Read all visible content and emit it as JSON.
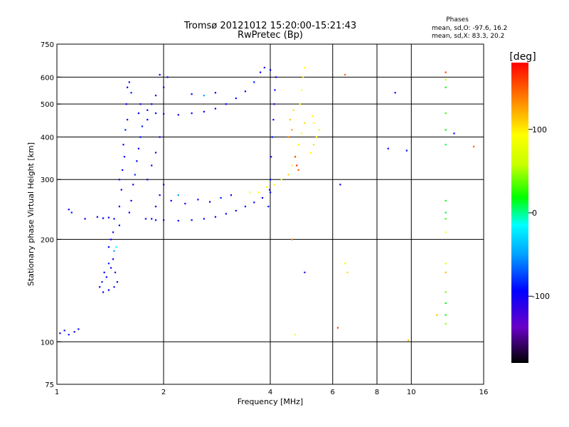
{
  "chart_data": {
    "type": "scatter",
    "title": "Tromsø 20121012 15:20:00-15:21:43",
    "subtitle": "RwPretec (Bp)",
    "xlabel": "Frequency [MHz]",
    "ylabel": "Stationary phase Virtual Height [km]",
    "x_scale": "log",
    "y_scale": "log",
    "xlim": [
      1,
      16
    ],
    "ylim": [
      75,
      750
    ],
    "x_ticks": [
      1,
      2,
      4,
      6,
      8,
      10,
      16
    ],
    "x_tick_labels": [
      "1",
      "2",
      "4",
      "6",
      "8",
      "10",
      "16"
    ],
    "y_ticks": [
      75,
      100,
      200,
      300,
      400,
      500,
      600,
      750
    ],
    "y_tick_labels": [
      "75",
      "100",
      "200",
      "300",
      "400",
      "500",
      "600",
      "750"
    ],
    "x_grid": [
      2,
      4,
      6,
      8,
      10
    ],
    "y_grid": [
      100,
      200,
      300,
      400,
      500,
      600
    ],
    "legend": {
      "title": "Phases",
      "lines": [
        "mean, sd,O: -97.6, 16.2",
        "mean, sd,X: 83.3, 20.2"
      ],
      "placement": "top-right"
    },
    "colorbar": {
      "label": "[deg]",
      "range": [
        -180,
        180
      ],
      "ticks": [
        100,
        0,
        -100
      ],
      "tick_labels": [
        "100",
        "0",
        "-100"
      ],
      "colors": [
        "#000000",
        "#6a00c8",
        "#0000ff",
        "#00a0ff",
        "#00ffff",
        "#00ff00",
        "#c8ff00",
        "#ffff00",
        "#ff8000",
        "#ff0000"
      ]
    },
    "series": [
      {
        "points": [
          [
            1.02,
            106,
            -100
          ],
          [
            1.05,
            108,
            -100
          ],
          [
            1.08,
            105,
            -95
          ],
          [
            1.12,
            107,
            -100
          ],
          [
            1.15,
            109,
            -100
          ],
          [
            1.08,
            245,
            -100
          ],
          [
            1.1,
            240,
            -95
          ],
          [
            1.2,
            230,
            -100
          ],
          [
            1.3,
            233,
            -100
          ],
          [
            1.35,
            231,
            -100
          ],
          [
            1.4,
            232,
            -105
          ],
          [
            1.45,
            230,
            -100
          ],
          [
            1.32,
            145,
            -100
          ],
          [
            1.34,
            150,
            -95
          ],
          [
            1.36,
            160,
            -100
          ],
          [
            1.38,
            155,
            -100
          ],
          [
            1.4,
            170,
            -95
          ],
          [
            1.42,
            165,
            -100
          ],
          [
            1.44,
            175,
            -100
          ],
          [
            1.46,
            160,
            -95
          ],
          [
            1.48,
            150,
            -100
          ],
          [
            1.35,
            140,
            -100
          ],
          [
            1.4,
            142,
            -100
          ],
          [
            1.45,
            145,
            -105
          ],
          [
            1.4,
            190,
            -100
          ],
          [
            1.42,
            200,
            -100
          ],
          [
            1.44,
            210,
            -100
          ],
          [
            1.45,
            185,
            -60
          ],
          [
            1.47,
            190,
            -20
          ],
          [
            1.5,
            220,
            -100
          ],
          [
            1.5,
            250,
            -100
          ],
          [
            1.52,
            280,
            -100
          ],
          [
            1.5,
            300,
            -95
          ],
          [
            1.53,
            320,
            -100
          ],
          [
            1.55,
            350,
            -100
          ],
          [
            1.54,
            380,
            -100
          ],
          [
            1.56,
            420,
            -95
          ],
          [
            1.58,
            450,
            -100
          ],
          [
            1.57,
            500,
            -100
          ],
          [
            1.58,
            560,
            -100
          ],
          [
            1.6,
            580,
            -100
          ],
          [
            1.62,
            540,
            -95
          ],
          [
            1.6,
            240,
            -100
          ],
          [
            1.62,
            260,
            -100
          ],
          [
            1.64,
            290,
            -100
          ],
          [
            1.66,
            310,
            -90
          ],
          [
            1.68,
            340,
            -100
          ],
          [
            1.7,
            370,
            -100
          ],
          [
            1.72,
            400,
            -100
          ],
          [
            1.74,
            430,
            -95
          ],
          [
            1.7,
            470,
            -100
          ],
          [
            1.72,
            500,
            -100
          ],
          [
            1.78,
            230,
            -100
          ],
          [
            1.85,
            230,
            -100
          ],
          [
            1.9,
            228,
            -100
          ],
          [
            2.0,
            228,
            -100
          ],
          [
            2.2,
            227,
            -100
          ],
          [
            2.4,
            228,
            -100
          ],
          [
            2.6,
            230,
            -100
          ],
          [
            2.8,
            233,
            -100
          ],
          [
            3.0,
            238,
            -100
          ],
          [
            3.2,
            243,
            -95
          ],
          [
            3.4,
            250,
            -100
          ],
          [
            3.6,
            257,
            -100
          ],
          [
            3.8,
            265,
            -100
          ],
          [
            4.0,
            275,
            -100
          ],
          [
            1.9,
            250,
            -100
          ],
          [
            1.95,
            270,
            -100
          ],
          [
            2.0,
            290,
            -100
          ],
          [
            2.1,
            260,
            -100
          ],
          [
            2.2,
            270,
            -60
          ],
          [
            2.3,
            255,
            -100
          ],
          [
            2.5,
            262,
            -100
          ],
          [
            2.7,
            258,
            -100
          ],
          [
            2.9,
            265,
            -95
          ],
          [
            3.1,
            270,
            -100
          ],
          [
            1.8,
            300,
            -100
          ],
          [
            1.85,
            330,
            -100
          ],
          [
            1.9,
            360,
            -100
          ],
          [
            1.95,
            400,
            -100
          ],
          [
            1.8,
            450,
            -100
          ],
          [
            1.85,
            500,
            -100
          ],
          [
            1.9,
            530,
            -100
          ],
          [
            2.0,
            560,
            -100
          ],
          [
            2.05,
            600,
            -100
          ],
          [
            1.95,
            610,
            -100
          ],
          [
            1.8,
            480,
            -100
          ],
          [
            1.9,
            470,
            -100
          ],
          [
            2.0,
            468,
            -100
          ],
          [
            2.2,
            465,
            -100
          ],
          [
            2.4,
            470,
            -100
          ],
          [
            2.6,
            475,
            -100
          ],
          [
            2.8,
            485,
            -100
          ],
          [
            3.0,
            500,
            -100
          ],
          [
            3.2,
            520,
            -100
          ],
          [
            3.4,
            545,
            -100
          ],
          [
            3.6,
            580,
            -95
          ],
          [
            3.75,
            620,
            -100
          ],
          [
            3.85,
            640,
            -100
          ],
          [
            2.4,
            535,
            -100
          ],
          [
            2.6,
            530,
            -60
          ],
          [
            2.8,
            540,
            -100
          ],
          [
            4.0,
            300,
            -100
          ],
          [
            4.02,
            350,
            -100
          ],
          [
            4.05,
            400,
            -95
          ],
          [
            4.08,
            450,
            -100
          ],
          [
            4.1,
            500,
            -100
          ],
          [
            4.12,
            550,
            -100
          ],
          [
            4.15,
            600,
            -100
          ],
          [
            4.0,
            630,
            -100
          ],
          [
            3.95,
            250,
            -100
          ],
          [
            3.98,
            280,
            -100
          ],
          [
            3.5,
            275,
            100
          ],
          [
            3.7,
            275,
            100
          ],
          [
            3.9,
            285,
            100
          ],
          [
            4.1,
            290,
            100
          ],
          [
            4.3,
            300,
            100
          ],
          [
            4.5,
            310,
            110
          ],
          [
            4.6,
            330,
            100
          ],
          [
            4.7,
            350,
            90
          ],
          [
            4.8,
            380,
            100
          ],
          [
            4.9,
            410,
            100
          ],
          [
            5.0,
            440,
            110
          ],
          [
            4.85,
            500,
            100
          ],
          [
            4.9,
            550,
            100
          ],
          [
            4.95,
            600,
            110
          ],
          [
            5.0,
            640,
            100
          ],
          [
            4.5,
            400,
            140
          ],
          [
            4.6,
            420,
            130
          ],
          [
            4.7,
            350,
            160
          ],
          [
            4.75,
            330,
            170
          ],
          [
            4.8,
            320,
            150
          ],
          [
            4.55,
            450,
            120
          ],
          [
            4.65,
            480,
            110
          ],
          [
            5.2,
            360,
            100
          ],
          [
            5.3,
            380,
            110
          ],
          [
            5.4,
            400,
            100
          ],
          [
            5.5,
            420,
            90
          ],
          [
            5.3,
            440,
            100
          ],
          [
            5.25,
            460,
            100
          ],
          [
            4.6,
            200,
            140
          ],
          [
            4.7,
            105,
            100
          ],
          [
            5.0,
            160,
            -120
          ],
          [
            6.2,
            110,
            160
          ],
          [
            6.5,
            170,
            100
          ],
          [
            6.6,
            160,
            110
          ],
          [
            6.5,
            610,
            150
          ],
          [
            9.0,
            540,
            -100
          ],
          [
            8.6,
            370,
            -100
          ],
          [
            9.7,
            365,
            -100
          ],
          [
            9.8,
            101,
            120
          ],
          [
            12.5,
            620,
            160
          ],
          [
            12.5,
            590,
            60
          ],
          [
            12.5,
            560,
            20
          ],
          [
            12.5,
            470,
            30
          ],
          [
            12.5,
            420,
            20
          ],
          [
            12.5,
            380,
            10
          ],
          [
            12.5,
            260,
            20
          ],
          [
            12.5,
            240,
            10
          ],
          [
            12.5,
            230,
            30
          ],
          [
            12.5,
            210,
            100
          ],
          [
            12.5,
            170,
            90
          ],
          [
            12.5,
            160,
            120
          ],
          [
            12.5,
            140,
            40
          ],
          [
            12.5,
            130,
            20
          ],
          [
            12.5,
            120,
            20
          ],
          [
            12.5,
            113,
            50
          ],
          [
            13.2,
            410,
            -100
          ],
          [
            15.0,
            375,
            150
          ],
          [
            11.8,
            120,
            120
          ],
          [
            6.3,
            290,
            -100
          ]
        ]
      }
    ]
  }
}
